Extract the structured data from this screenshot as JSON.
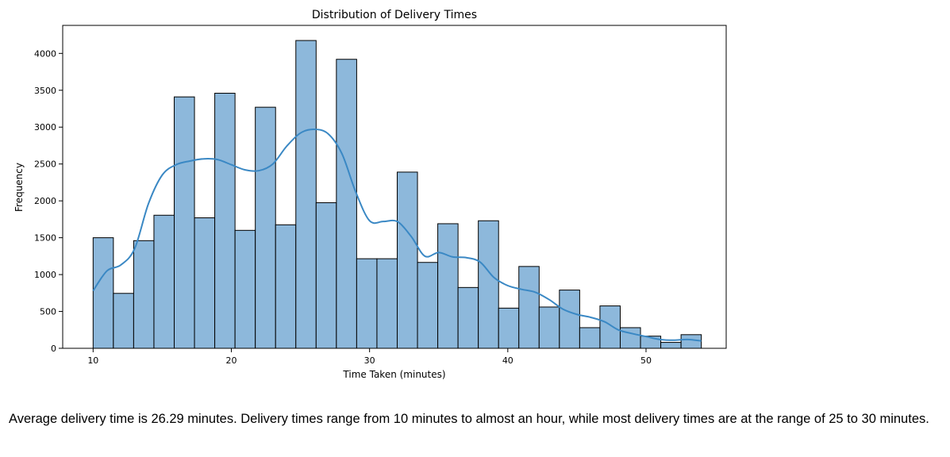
{
  "chart_data": {
    "type": "bar",
    "title": "Distribution of Delivery Times",
    "xlabel": "Time Taken (minutes)",
    "ylabel": "Frequency",
    "xlim": [
      7.8,
      55.8
    ],
    "ylim": [
      0,
      4380
    ],
    "xticks": [
      10,
      20,
      30,
      40,
      50
    ],
    "yticks": [
      0,
      500,
      1000,
      1500,
      2000,
      2500,
      3000,
      3500,
      4000
    ],
    "bin_start": 10,
    "bin_width": 1.4667,
    "values": [
      1500,
      745,
      1460,
      1805,
      3410,
      1770,
      3460,
      1600,
      3270,
      1675,
      4175,
      1975,
      3920,
      1215,
      1215,
      2390,
      1165,
      1690,
      825,
      1730,
      545,
      1110,
      560,
      790,
      280,
      575,
      280,
      165,
      80,
      185
    ],
    "kde": {
      "x": [
        10,
        11,
        12,
        13,
        14,
        15,
        16,
        17,
        18,
        19,
        20,
        21,
        22,
        23,
        24,
        25,
        26,
        27,
        28,
        29,
        30,
        31,
        32,
        33,
        34,
        35,
        36,
        37,
        38,
        39,
        40,
        41,
        42,
        43,
        44,
        45,
        46,
        47,
        48,
        49,
        50,
        51,
        52,
        53,
        54
      ],
      "y": [
        780,
        1050,
        1130,
        1350,
        1960,
        2350,
        2490,
        2540,
        2570,
        2560,
        2490,
        2420,
        2410,
        2500,
        2740,
        2920,
        2970,
        2910,
        2640,
        2120,
        1730,
        1720,
        1720,
        1520,
        1250,
        1300,
        1240,
        1230,
        1170,
        960,
        850,
        800,
        760,
        660,
        530,
        460,
        420,
        360,
        250,
        200,
        160,
        120,
        110,
        120,
        100
      ]
    },
    "bar_color": "#8db8db",
    "bar_edge_color": "#000000",
    "kde_color": "#3a88c4",
    "grid": false,
    "legend": "none"
  },
  "caption": "Average delivery time is 26.29 minutes. Delivery times range from 10 minutes to almost an hour, while most delivery times are at the range of 25 to 30 minutes."
}
